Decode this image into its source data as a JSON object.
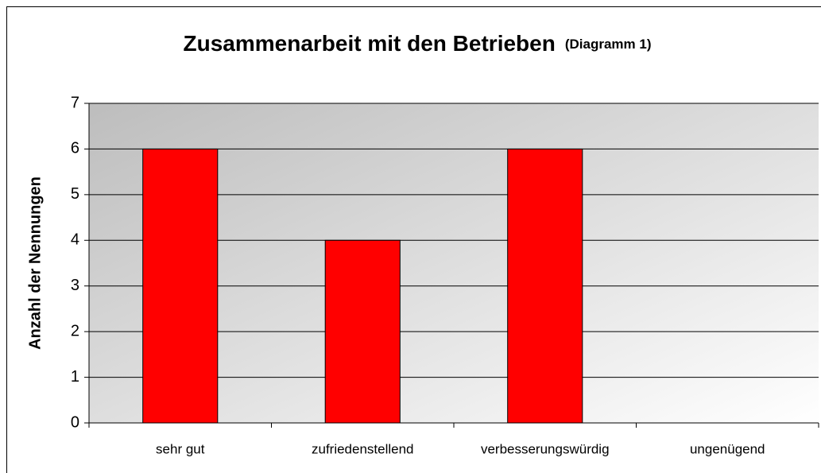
{
  "chart_data": {
    "type": "bar",
    "title": "Zusammenarbeit mit den Betrieben",
    "subtitle": "(Diagramm 1)",
    "y_label": "Anzahl der Nennungen",
    "categories": [
      "sehr gut",
      "zufriedenstellend",
      "verbesserungswürdig",
      "ungenügend"
    ],
    "values": [
      6,
      4,
      6,
      0
    ],
    "color": "#ff0000",
    "ylim": [
      0,
      7
    ],
    "yticks": [
      0,
      1,
      2,
      3,
      4,
      5,
      6,
      7
    ],
    "grid": true
  }
}
